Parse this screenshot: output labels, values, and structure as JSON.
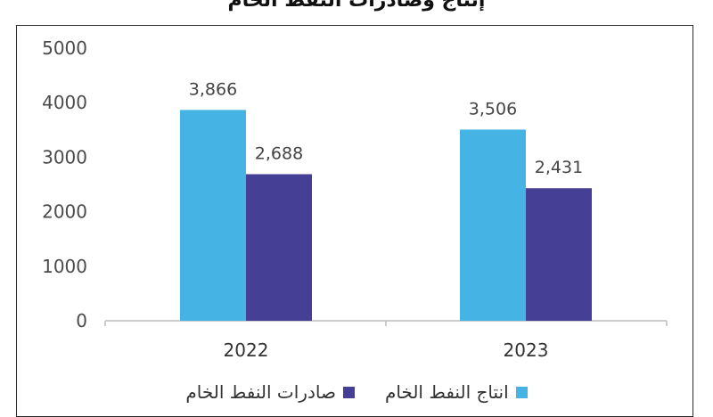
{
  "chart_data": {
    "type": "bar",
    "title": "إنتاج وصادرات النفط الخام",
    "categories": [
      "2022",
      "2023"
    ],
    "series": [
      {
        "name": "انتاج النفط الخام",
        "values": [
          3866,
          3506
        ],
        "labels": [
          "3,866",
          "3,506"
        ],
        "color": "#45b3e3"
      },
      {
        "name": "صادرات النفط الخام",
        "values": [
          2688,
          2431
        ],
        "labels": [
          "2,688",
          "2,431"
        ],
        "color": "#463f96"
      }
    ],
    "y_ticks": [
      "0",
      "1000",
      "2000",
      "3000",
      "4000",
      "5000"
    ],
    "ylim": [
      0,
      5000
    ],
    "xlabel": "",
    "ylabel": "",
    "grid": false,
    "legend_position": "bottom"
  }
}
